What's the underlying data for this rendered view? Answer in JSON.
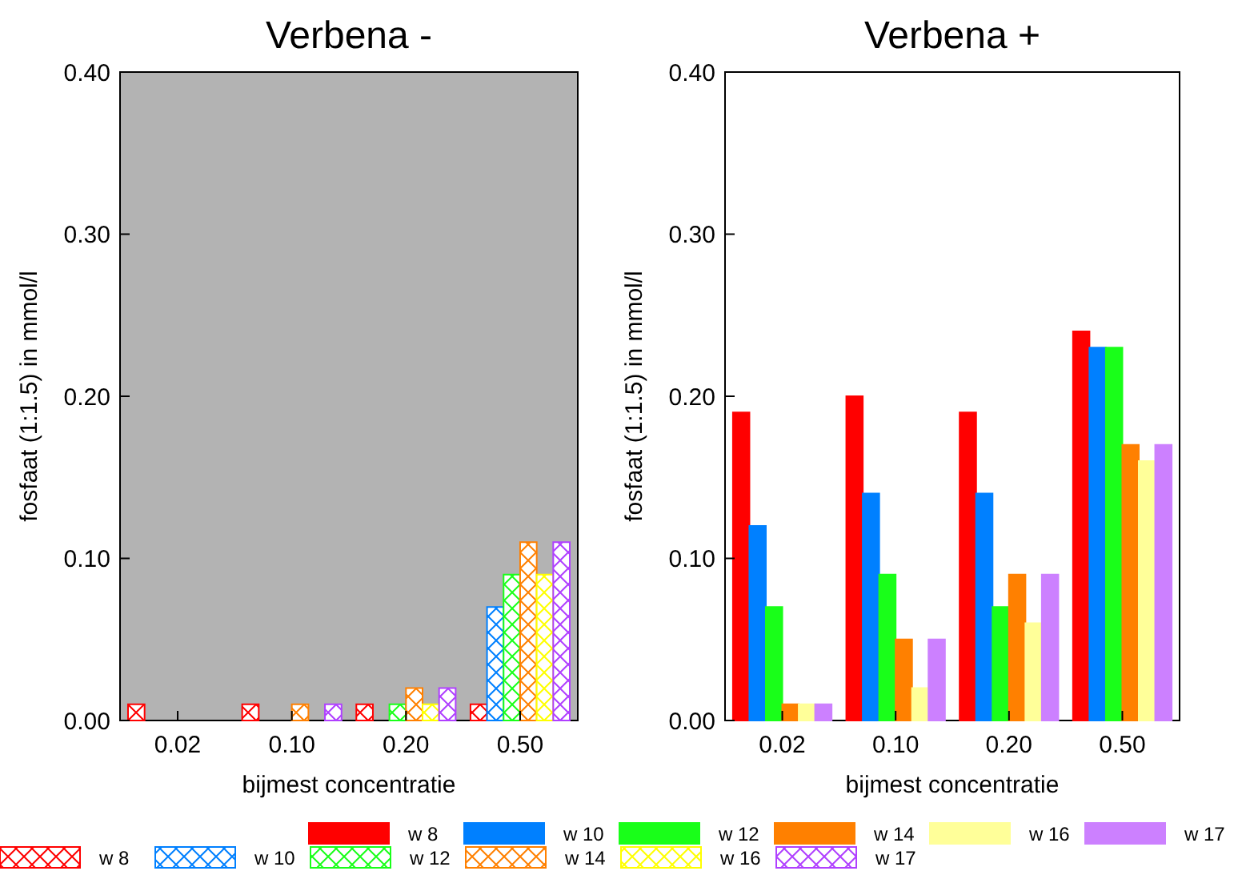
{
  "chart_data": [
    {
      "type": "bar",
      "title": "Verbena -",
      "xlabel": "bijmest concentratie",
      "ylabel": "fosfaat (1:1.5) in mmol/l",
      "categories": [
        "0.02",
        "0.10",
        "0.20",
        "0.50"
      ],
      "ylim": [
        0,
        0.4
      ],
      "yticks": [
        {
          "value": 0,
          "label": "0.00"
        },
        {
          "value": 0.1,
          "label": "0.10"
        },
        {
          "value": 0.2,
          "label": "0.20"
        },
        {
          "value": 0.3,
          "label": "0.30"
        },
        {
          "value": 0.4,
          "label": "0.40"
        }
      ],
      "grid": false,
      "legend": "bottom",
      "series": [
        {
          "name": "w 8",
          "color": "#ff0000",
          "values": [
            0.01,
            0.01,
            0.01,
            0.01
          ]
        },
        {
          "name": "w 10",
          "color": "#0080ff",
          "values": [
            0,
            0,
            0,
            0.07
          ]
        },
        {
          "name": "w 12",
          "color": "#19ff19",
          "values": [
            0,
            0,
            0.01,
            0.09
          ]
        },
        {
          "name": "w 14",
          "color": "#ff8000",
          "values": [
            0,
            0.01,
            0.02,
            0.11
          ]
        },
        {
          "name": "w 16",
          "color": "#ffff00",
          "values": [
            0,
            0,
            0.01,
            0.09
          ]
        },
        {
          "name": "w 17",
          "color": "#b040ff",
          "values": [
            0,
            0.01,
            0.02,
            0.11
          ]
        }
      ]
    },
    {
      "type": "bar",
      "title": "Verbena +",
      "xlabel": "bijmest concentratie",
      "ylabel": "fosfaat (1:1.5) in mmol/l",
      "categories": [
        "0.02",
        "0.10",
        "0.20",
        "0.50"
      ],
      "ylim": [
        0,
        0.4
      ],
      "yticks": [
        {
          "value": 0,
          "label": "0.00"
        },
        {
          "value": 0.1,
          "label": "0.10"
        },
        {
          "value": 0.2,
          "label": "0.20"
        },
        {
          "value": 0.3,
          "label": "0.30"
        },
        {
          "value": 0.4,
          "label": "0.40"
        }
      ],
      "grid": false,
      "legend": "bottom",
      "series": [
        {
          "name": "w 8",
          "color": "#ff0000",
          "values": [
            0.19,
            0.2,
            0.19,
            0.24
          ]
        },
        {
          "name": "w 10",
          "color": "#0080ff",
          "values": [
            0.12,
            0.14,
            0.14,
            0.23
          ]
        },
        {
          "name": "w 12",
          "color": "#19ff19",
          "values": [
            0.07,
            0.09,
            0.07,
            0.23
          ]
        },
        {
          "name": "w 14",
          "color": "#ff8000",
          "values": [
            0.01,
            0.05,
            0.09,
            0.17
          ]
        },
        {
          "name": "w 16",
          "color": "#ffff99",
          "values": [
            0.01,
            0.02,
            0.06,
            0.16
          ]
        },
        {
          "name": "w 17",
          "color": "#cc80ff",
          "values": [
            0.01,
            0.05,
            0.09,
            0.17
          ]
        }
      ]
    }
  ]
}
